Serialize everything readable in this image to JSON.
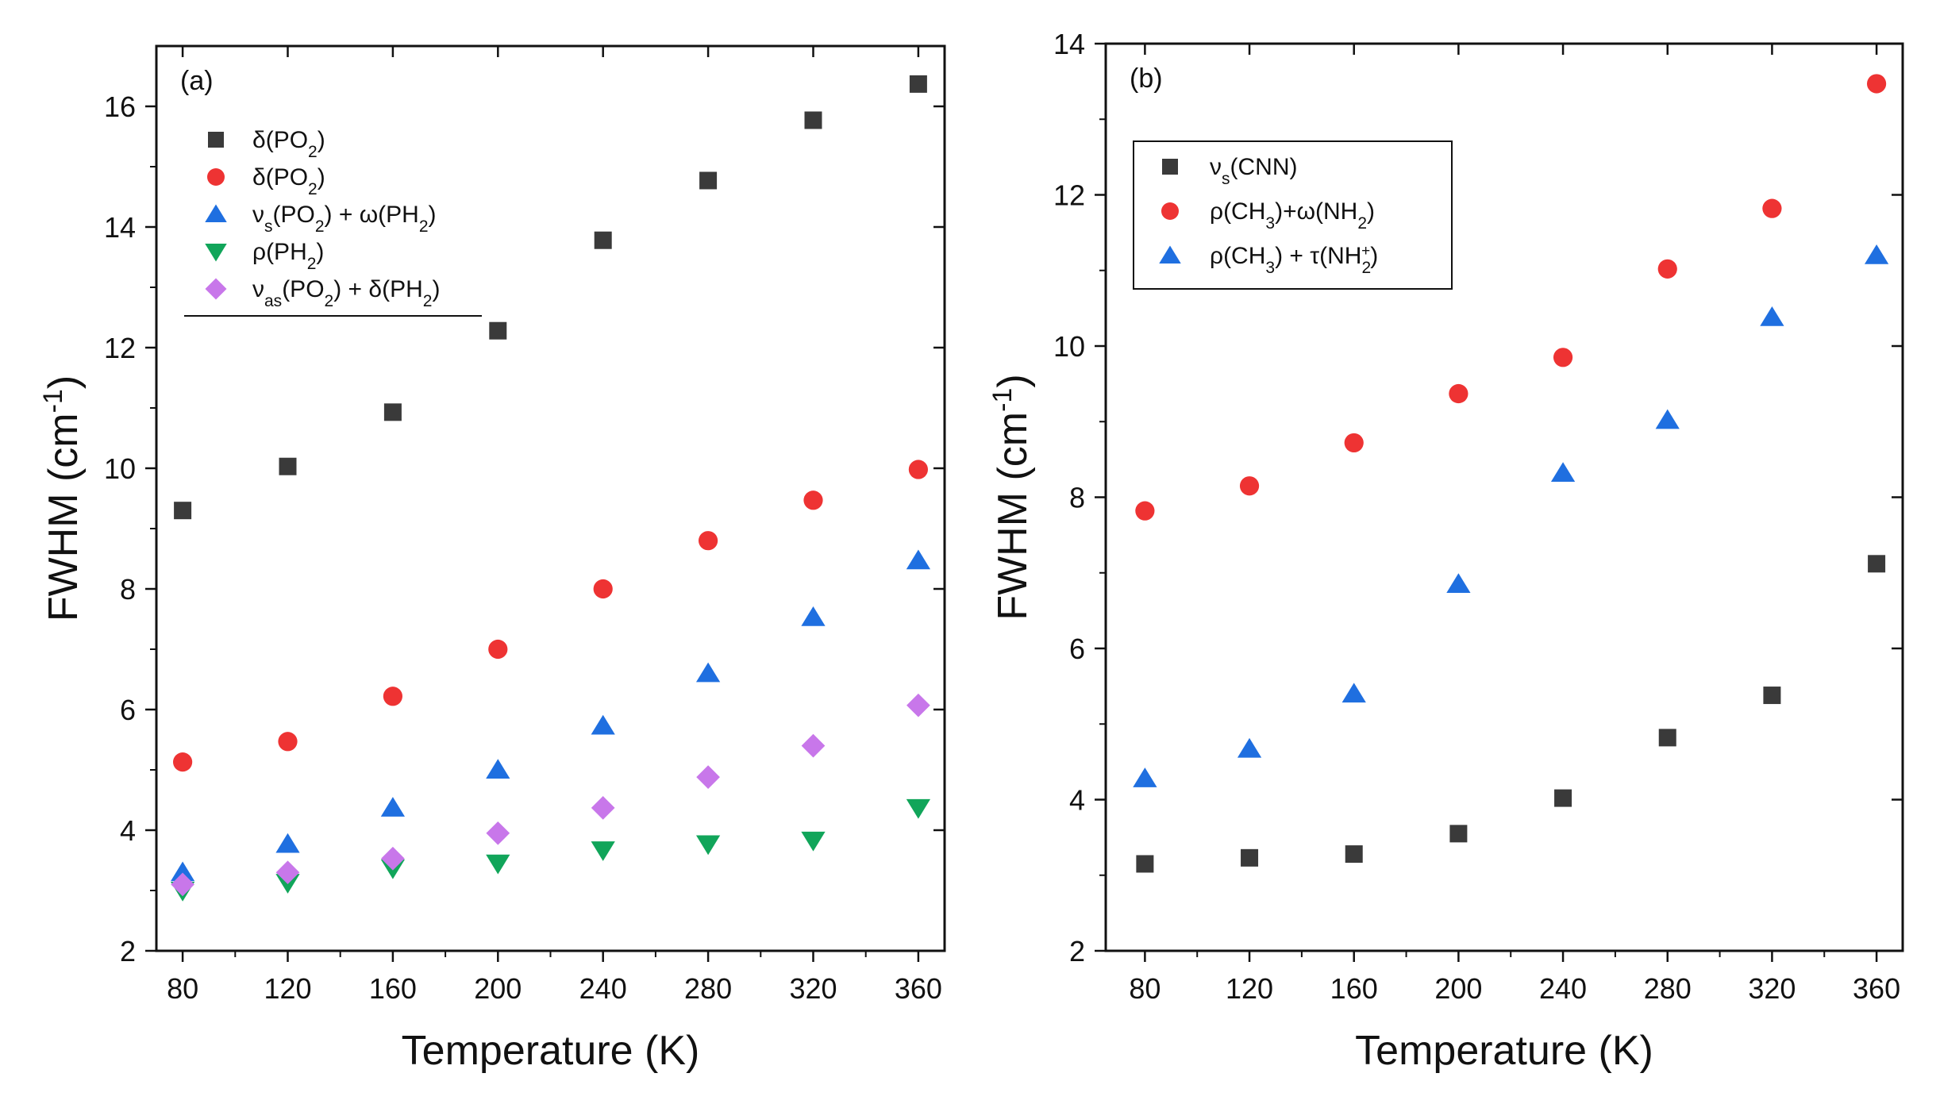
{
  "colors": {
    "square": "#3a3a3a",
    "circle": "#ee3333",
    "triangle_up": "#1f6fe0",
    "triangle_down": "#11a55a",
    "diamond": "#c877ea"
  },
  "chart_data": [
    {
      "type": "scatter",
      "panel": "(a)",
      "xlabel": "Temperature (K)",
      "ylabel_main": "FWHM (cm",
      "ylabel_sup": "-1",
      "ylabel_close": ")",
      "xlim": [
        70,
        370
      ],
      "ylim": [
        2,
        17
      ],
      "xticks": [
        80,
        120,
        160,
        200,
        240,
        280,
        320,
        360
      ],
      "yticks": [
        2,
        4,
        6,
        8,
        10,
        12,
        14,
        16
      ],
      "legend_position": "top-left",
      "legend_framed": false,
      "series": [
        {
          "name": "δ(PO2)",
          "legend": {
            "pre": "δ(PO",
            "sub1": "2",
            "mid": ")",
            "sub2": "",
            "post": ""
          },
          "marker": "square",
          "color": "#3a3a3a",
          "x": [
            80,
            120,
            160,
            200,
            240,
            280,
            320,
            360
          ],
          "y": [
            9.3,
            10.03,
            10.93,
            12.28,
            13.78,
            14.77,
            15.77,
            16.37
          ]
        },
        {
          "name": "δ(PO2)",
          "legend": {
            "pre": "δ(PO",
            "sub1": "2",
            "mid": ")",
            "sub2": "",
            "post": ""
          },
          "marker": "circle",
          "color": "#ee3333",
          "x": [
            80,
            120,
            160,
            200,
            240,
            280,
            320,
            360
          ],
          "y": [
            5.13,
            5.47,
            6.22,
            7.0,
            8.0,
            8.8,
            9.47,
            9.98
          ]
        },
        {
          "name": "νs(PO2) + ω(PH2)",
          "legend": {
            "pre": "ν",
            "sub1": "s",
            "mid": "(PO",
            "sub2": "2",
            "post": ") + ω(PH",
            "sub3": "2",
            "end": ")"
          },
          "marker": "triangle_up",
          "color": "#1f6fe0",
          "x": [
            80,
            120,
            160,
            200,
            240,
            280,
            320,
            360
          ],
          "y": [
            3.3,
            3.77,
            4.37,
            5.0,
            5.73,
            6.6,
            7.53,
            8.47
          ]
        },
        {
          "name": "ρ(PH2)",
          "legend": {
            "pre": "ρ(PH",
            "sub1": "2",
            "mid": ")",
            "sub2": "",
            "post": ""
          },
          "marker": "triangle_down",
          "color": "#11a55a",
          "x": [
            80,
            120,
            160,
            200,
            240,
            280,
            320,
            360
          ],
          "y": [
            3.0,
            3.13,
            3.37,
            3.45,
            3.67,
            3.77,
            3.83,
            4.37
          ]
        },
        {
          "name": "νas(PO2) + δ(PH2)",
          "legend": {
            "pre": "ν",
            "sub1": "as",
            "mid": "(PO",
            "sub2": "2",
            "post": ") + δ(PH",
            "sub3": "2",
            "end": ")"
          },
          "marker": "diamond",
          "color": "#c877ea",
          "x": [
            80,
            120,
            160,
            200,
            240,
            280,
            320,
            360
          ],
          "y": [
            3.1,
            3.3,
            3.53,
            3.95,
            4.37,
            4.88,
            5.4,
            6.07
          ]
        }
      ]
    },
    {
      "type": "scatter",
      "panel": "(b)",
      "xlabel": "Temperature (K)",
      "ylabel_main": "FWHM (cm",
      "ylabel_sup": "-1",
      "ylabel_close": ")",
      "xlim": [
        65,
        370
      ],
      "ylim": [
        2,
        14
      ],
      "xticks": [
        80,
        120,
        160,
        200,
        240,
        280,
        320,
        360
      ],
      "yticks": [
        2,
        4,
        6,
        8,
        10,
        12,
        14
      ],
      "legend_position": "upper-left",
      "legend_framed": true,
      "series": [
        {
          "name": "νs(CNN)",
          "legend": {
            "pre": "ν",
            "sub1": "s",
            "mid": "(CNN)",
            "sub2": "",
            "post": ""
          },
          "marker": "square",
          "color": "#3a3a3a",
          "x": [
            80,
            120,
            160,
            200,
            240,
            280,
            320,
            360
          ],
          "y": [
            3.15,
            3.23,
            3.28,
            3.55,
            4.02,
            4.82,
            5.38,
            7.12
          ]
        },
        {
          "name": "ρ(CH3)+ω(NH2)",
          "legend": {
            "pre": "ρ(CH",
            "sub1": "3",
            "mid": ")+ω(NH",
            "sub2": "2",
            "post": ")"
          },
          "marker": "circle",
          "color": "#ee3333",
          "x": [
            80,
            120,
            160,
            200,
            240,
            280,
            320,
            360
          ],
          "y": [
            7.82,
            8.15,
            8.72,
            9.37,
            9.85,
            11.02,
            11.82,
            13.47
          ]
        },
        {
          "name": "ρ(CH3) + τ(NH2+)",
          "legend": {
            "pre": "ρ(CH",
            "sub1": "3",
            "mid": ") + τ(NH",
            "sub2": "2",
            "sup2": "+",
            "post": ")"
          },
          "marker": "triangle_up",
          "color": "#1f6fe0",
          "x": [
            80,
            120,
            160,
            200,
            240,
            280,
            320,
            360
          ],
          "y": [
            4.28,
            4.67,
            5.4,
            6.85,
            8.32,
            9.02,
            10.38,
            11.2
          ]
        }
      ]
    }
  ]
}
